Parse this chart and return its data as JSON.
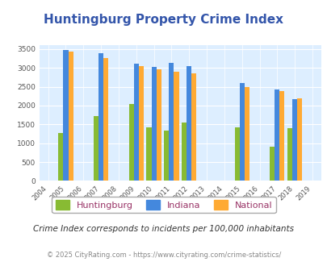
{
  "title": "Huntingburg Property Crime Index",
  "title_color": "#3355aa",
  "subtitle": "Crime Index corresponds to incidents per 100,000 inhabitants",
  "footer": "© 2025 CityRating.com - https://www.cityrating.com/crime-statistics/",
  "years": [
    2005,
    2007,
    2009,
    2010,
    2011,
    2012,
    2015,
    2017,
    2018
  ],
  "huntingburg": [
    1260,
    1720,
    2050,
    1430,
    1340,
    1550,
    1420,
    900,
    1390
  ],
  "indiana": [
    3470,
    3390,
    3100,
    3030,
    3140,
    3040,
    2600,
    2430,
    2170
  ],
  "national": [
    3430,
    3260,
    3040,
    2960,
    2900,
    2860,
    2500,
    2380,
    2190
  ],
  "huntingburg_color": "#88bb33",
  "indiana_color": "#4488dd",
  "national_color": "#ffaa33",
  "plot_bg_color": "#ddeeff",
  "xlim": [
    2003.5,
    2019.5
  ],
  "ylim": [
    0,
    3600
  ],
  "yticks": [
    0,
    500,
    1000,
    1500,
    2000,
    2500,
    3000,
    3500
  ],
  "xtick_years": [
    2004,
    2005,
    2006,
    2007,
    2008,
    2009,
    2010,
    2011,
    2012,
    2013,
    2014,
    2015,
    2016,
    2017,
    2018,
    2019
  ],
  "bar_width": 0.28,
  "legend_labels": [
    "Huntingburg",
    "Indiana",
    "National"
  ],
  "legend_colors": [
    "#88bb33",
    "#4488dd",
    "#ffaa33"
  ],
  "legend_text_color": "#993366"
}
